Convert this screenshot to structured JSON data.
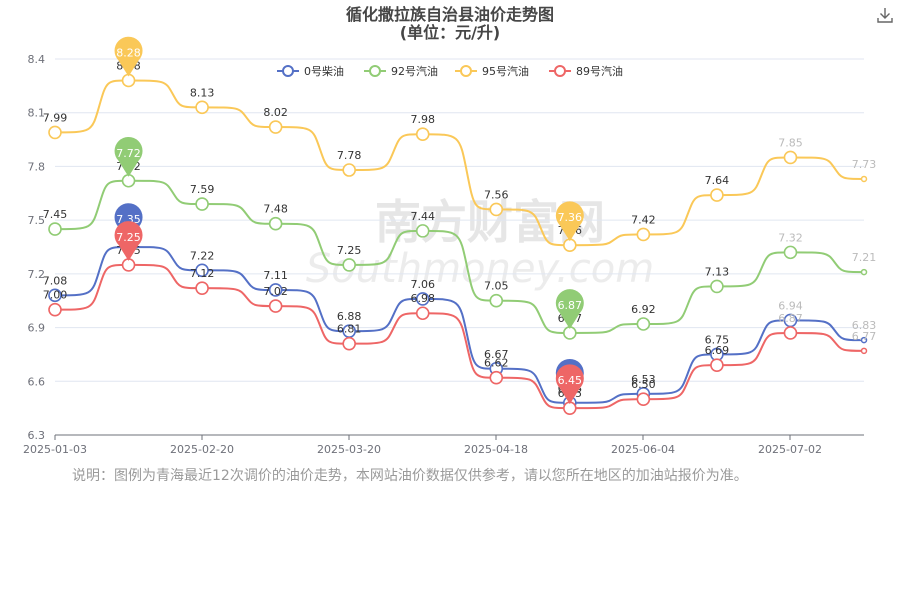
{
  "chart_data": {
    "type": "line",
    "title": "循化撒拉族自治县油价走势图",
    "subtitle": "(单位：元/升)",
    "x_ticks": [
      "2025-01-03",
      "2025-02-20",
      "2025-03-20",
      "2025-04-18",
      "2025-06-04",
      "2025-07-02"
    ],
    "y_ticks": [
      "6.3",
      "6.6",
      "6.9",
      "7.2",
      "7.5",
      "7.8",
      "8.1",
      "8.4"
    ],
    "ylim": [
      6.3,
      8.4
    ],
    "grid": true,
    "legend_position": "top",
    "series": [
      {
        "name": "0号柴油",
        "color": "#5470c6",
        "values": [
          7.08,
          7.35,
          7.22,
          7.11,
          6.88,
          7.06,
          6.67,
          6.48,
          6.53,
          6.75,
          6.94,
          6.83
        ],
        "labels": [
          "7.08",
          "7.35",
          "7.22",
          "7.11",
          "6.88",
          "7.06",
          "6.67",
          "6.48",
          "6.53",
          "6.75",
          "6.94",
          "6.83"
        ]
      },
      {
        "name": "92号汽油",
        "color": "#91cc75",
        "values": [
          7.45,
          7.72,
          7.59,
          7.48,
          7.25,
          7.44,
          7.05,
          6.87,
          6.92,
          7.13,
          7.32,
          7.21
        ],
        "labels": [
          "7.45",
          "7.72",
          "7.59",
          "7.48",
          "7.25",
          "7.44",
          "7.05",
          "6.87",
          "6.92",
          "7.13",
          "7.32",
          "7.21"
        ]
      },
      {
        "name": "95号汽油",
        "color": "#fac858",
        "values": [
          7.99,
          8.28,
          8.13,
          8.02,
          7.78,
          7.98,
          7.56,
          7.36,
          7.42,
          7.64,
          7.85,
          7.73
        ],
        "labels": [
          "7.99",
          "8.28",
          "8.13",
          "8.02",
          "7.78",
          "7.98",
          "7.56",
          "7.36",
          "7.42",
          "7.64",
          "7.85",
          "7.73"
        ]
      },
      {
        "name": "89号汽油",
        "color": "#ee6666",
        "values": [
          7.0,
          7.25,
          7.12,
          7.02,
          6.81,
          6.98,
          6.62,
          6.45,
          6.5,
          6.69,
          6.87,
          6.77
        ],
        "labels": [
          "7.00",
          "7.25",
          "7.12",
          "7.02",
          "6.81",
          "6.98",
          "6.62",
          "6.45",
          "6.50",
          "6.69",
          "6.87",
          "6.77"
        ]
      }
    ]
  },
  "note": "说明：图例为青海最近12次调价的油价走势，本网站油价数据仅供参考，请以您所在地区的加油站报价为准。",
  "watermark": {
    "cn": "南方财富网",
    "en": "Southmoney.com"
  },
  "icons": {
    "download": "download-icon"
  }
}
